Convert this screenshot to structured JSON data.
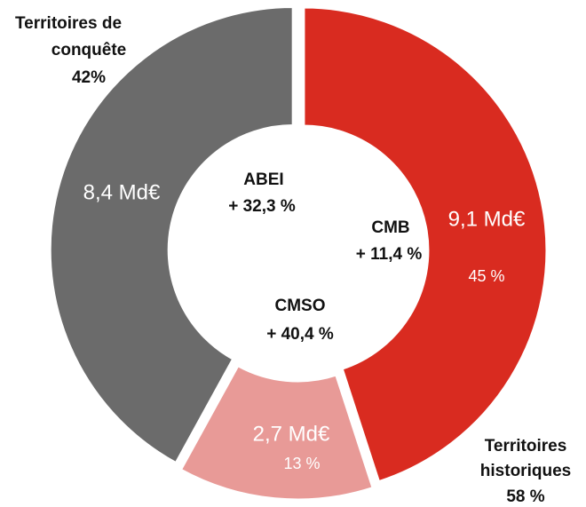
{
  "chart_data": {
    "type": "donut",
    "categories": [
      "CMB",
      "CMSO",
      "ABEI"
    ],
    "values": [
      45,
      13,
      42
    ],
    "value_labels": [
      "45 %",
      "13 %",
      null
    ],
    "colors": [
      "#d92b20",
      "#e89a97",
      "#6b6b6b"
    ],
    "amounts": [
      9.1,
      2.7,
      8.4
    ],
    "amount_labels": [
      "9,1 Md€",
      "2,7 Md€",
      "8,4 Md€"
    ],
    "growth": [
      11.4,
      40.4,
      32.3
    ],
    "growth_labels": [
      "+ 11,4 %",
      "+ 40,4 %",
      "+ 32,3 %"
    ],
    "groups": [
      {
        "label_lines": [
          "Territoires",
          "historiques"
        ],
        "value": 58,
        "value_label": "58 %"
      },
      {
        "label_lines": [
          "Territoires de",
          "conquête"
        ],
        "value": 42,
        "value_label": "42%"
      }
    ]
  }
}
